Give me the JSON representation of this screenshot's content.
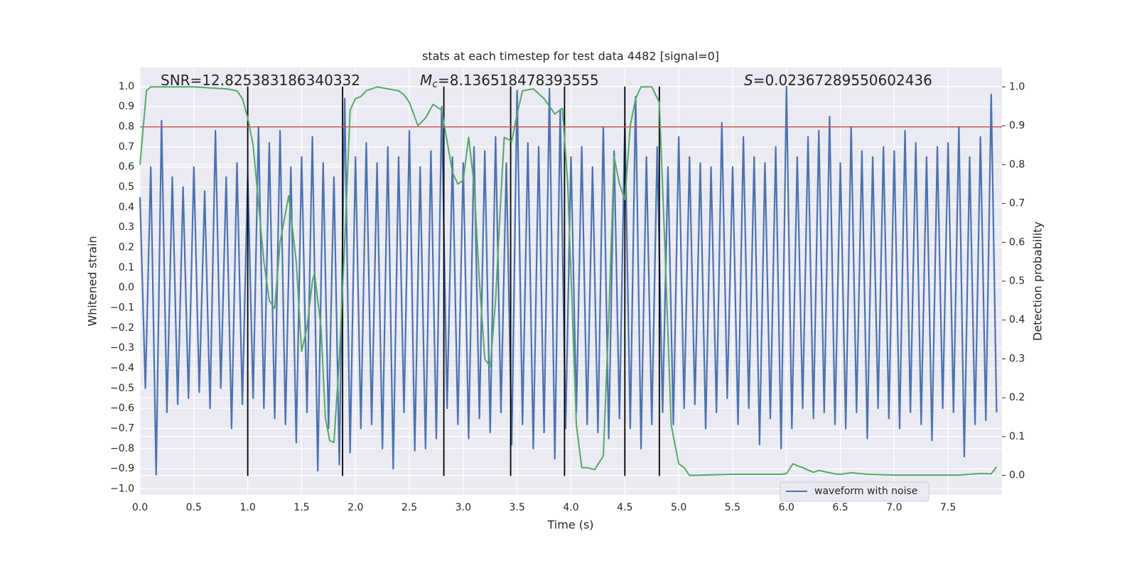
{
  "chart_data": {
    "type": "line",
    "title": "stats at each timestep for test data 4482 [signal=0]",
    "xlabel": "Time (s)",
    "ylabel": "Whitened strain",
    "y2label": "Detection probability",
    "annotations": [
      {
        "text": "SNR=12.825383186340332"
      },
      {
        "symbol": "M",
        "subscript": "c",
        "text": "=8.136518478393555"
      },
      {
        "symbol": "S",
        "text": "=0.02367289550602436"
      }
    ],
    "xlim": [
      0,
      8.0
    ],
    "ylim": [
      -1.03,
      1.095
    ],
    "y2lim": [
      -0.05,
      1.05
    ],
    "xticks": [
      {
        "value": 0,
        "label": "0.0"
      },
      0.5,
      {
        "value": 1,
        "label": "1.0"
      },
      1.5,
      {
        "value": 2,
        "label": "2.0"
      },
      2.5,
      {
        "value": 3,
        "label": "3.0"
      },
      3.5,
      {
        "value": 4,
        "label": "4.0"
      },
      4.5,
      {
        "value": 5,
        "label": "5.0"
      },
      5.5,
      {
        "value": 6,
        "label": "6.0"
      },
      6.5,
      {
        "value": 7,
        "label": "7.0"
      },
      7.5
    ],
    "yticks": [
      {
        "value": -1,
        "label": "−1.0"
      },
      {
        "value": -0.9,
        "label": "−0.9"
      },
      {
        "value": -0.8,
        "label": "−0.8"
      },
      {
        "value": -0.7,
        "label": "−0.7"
      },
      {
        "value": -0.6,
        "label": "−0.6"
      },
      {
        "value": -0.5,
        "label": "−0.5"
      },
      {
        "value": -0.4,
        "label": "−0.4"
      },
      {
        "value": -0.3,
        "label": "−0.3"
      },
      {
        "value": -0.2,
        "label": "−0.2"
      },
      {
        "value": -0.1,
        "label": "−0.1"
      },
      {
        "value": 0,
        "label": "0.0"
      },
      0.1,
      0.2,
      0.3,
      0.4,
      0.5,
      0.6,
      0.7,
      0.8,
      0.9,
      {
        "value": 1,
        "label": "1.0"
      }
    ],
    "y2ticks": [
      {
        "value": 0,
        "label": "0.0"
      },
      0.1,
      0.2,
      0.3,
      0.4,
      0.5,
      0.6,
      0.7,
      0.8,
      0.9,
      {
        "value": 1,
        "label": "1.0"
      }
    ],
    "grid": true,
    "legend": "best",
    "series": [
      {
        "name": "waveform with noise",
        "color": "#4c72b0",
        "x": [
          0,
          0.05,
          0.1,
          0.15,
          0.2,
          0.25,
          0.3,
          0.35,
          0.4,
          0.45,
          0.5,
          0.55,
          0.6,
          0.65,
          0.7,
          0.75,
          0.8,
          0.85,
          0.9,
          0.95,
          1,
          1.05,
          1.1,
          1.15,
          1.2,
          1.25,
          1.3,
          1.35,
          1.4,
          1.45,
          1.5,
          1.55,
          1.6,
          1.65,
          1.7,
          1.75,
          1.8,
          1.85,
          1.9,
          1.95,
          2,
          2.05,
          2.1,
          2.15,
          2.2,
          2.25,
          2.3,
          2.35,
          2.4,
          2.45,
          2.5,
          2.55,
          2.6,
          2.65,
          2.7,
          2.75,
          2.8,
          2.85,
          2.9,
          2.95,
          3,
          3.05,
          3.1,
          3.15,
          3.2,
          3.25,
          3.3,
          3.35,
          3.4,
          3.45,
          3.5,
          3.55,
          3.6,
          3.65,
          3.7,
          3.75,
          3.8,
          3.85,
          3.9,
          3.95,
          4,
          4.05,
          4.1,
          4.15,
          4.2,
          4.25,
          4.3,
          4.35,
          4.4,
          4.45,
          4.5,
          4.55,
          4.6,
          4.65,
          4.7,
          4.75,
          4.8,
          4.85,
          4.9,
          4.95,
          5,
          5.05,
          5.1,
          5.15,
          5.2,
          5.25,
          5.3,
          5.35,
          5.4,
          5.45,
          5.5,
          5.55,
          5.6,
          5.65,
          5.7,
          5.75,
          5.8,
          5.85,
          5.9,
          5.95,
          6,
          6.05,
          6.1,
          6.15,
          6.2,
          6.25,
          6.3,
          6.35,
          6.4,
          6.45,
          6.5,
          6.55,
          6.6,
          6.65,
          6.7,
          6.75,
          6.8,
          6.85,
          6.9,
          6.95,
          7,
          7.05,
          7.1,
          7.15,
          7.2,
          7.25,
          7.3,
          7.35,
          7.4,
          7.45,
          7.5,
          7.55,
          7.6,
          7.65,
          7.7,
          7.75,
          7.8,
          7.85,
          7.9,
          7.95
        ],
        "values": [
          0.45,
          -0.5,
          0.6,
          -0.93,
          0.83,
          -0.62,
          0.55,
          -0.58,
          0.5,
          -0.55,
          0.6,
          -0.52,
          0.48,
          -0.6,
          0.78,
          -0.5,
          0.55,
          -0.7,
          0.62,
          -0.58,
          0.56,
          -0.55,
          0.8,
          -0.6,
          0.72,
          -0.65,
          0.78,
          -0.68,
          0.6,
          -0.77,
          0.65,
          -0.62,
          0.75,
          -0.91,
          0.62,
          -0.7,
          0.55,
          -0.88,
          0.94,
          -0.82,
          0.65,
          -0.7,
          0.72,
          -0.68,
          0.62,
          -0.8,
          0.7,
          -0.9,
          0.65,
          -0.62,
          0.78,
          -0.81,
          0.6,
          -0.8,
          0.68,
          -0.75,
          0.9,
          -0.6,
          0.65,
          -0.68,
          0.62,
          -0.75,
          0.7,
          -0.65,
          0.68,
          -0.72,
          0.75,
          -0.62,
          0.62,
          -0.78,
          0.98,
          -0.68,
          0.72,
          -0.8,
          0.7,
          -0.72,
          0.99,
          -0.85,
          0.88,
          -0.7,
          0.65,
          -0.62,
          0.7,
          -0.68,
          0.6,
          -0.72,
          0.8,
          -0.75,
          0.68,
          -0.65,
          0.82,
          -0.7,
          0.95,
          -0.8,
          0.65,
          -0.68,
          0.7,
          -0.62,
          0.6,
          -0.68,
          0.75,
          -0.6,
          0.65,
          -0.58,
          0.62,
          -0.7,
          0.6,
          -0.62,
          0.82,
          -0.55,
          0.6,
          -0.68,
          0.75,
          -0.6,
          0.65,
          -0.78,
          0.62,
          -0.65,
          0.7,
          -0.8,
          1.0,
          -0.7,
          0.65,
          -0.6,
          0.75,
          -0.65,
          0.78,
          -0.62,
          0.85,
          -0.68,
          0.62,
          -0.7,
          0.8,
          -0.62,
          0.68,
          -0.75,
          0.65,
          -0.6,
          0.7,
          -0.65,
          0.68,
          -0.7,
          0.78,
          -0.62,
          0.72,
          -0.68,
          0.65,
          -0.76,
          0.7,
          -0.6,
          0.72,
          -0.62,
          0.8,
          -0.84,
          0.65,
          -0.68,
          0.75,
          -0.66,
          0.96,
          -0.62
        ]
      }
    ],
    "probability": {
      "color": "#55a868",
      "axis": "y2",
      "x": [
        0,
        0.06,
        0.1,
        0.5,
        0.8,
        0.9,
        0.95,
        1.0,
        1.05,
        1.1,
        1.15,
        1.2,
        1.25,
        1.3,
        1.38,
        1.45,
        1.5,
        1.55,
        1.6,
        1.62,
        1.68,
        1.72,
        1.76,
        1.8,
        1.85,
        1.9,
        1.95,
        2.0,
        2.05,
        2.1,
        2.2,
        2.4,
        2.45,
        2.5,
        2.58,
        2.65,
        2.72,
        2.8,
        2.9,
        2.95,
        3.0,
        3.05,
        3.1,
        3.15,
        3.2,
        3.25,
        3.3,
        3.35,
        3.38,
        3.45,
        3.5,
        3.55,
        3.65,
        3.75,
        3.85,
        3.92,
        3.97,
        4.05,
        4.1,
        4.15,
        4.22,
        4.3,
        4.35,
        4.4,
        4.45,
        4.5,
        4.55,
        4.6,
        4.65,
        4.75,
        4.82,
        4.87,
        4.93,
        5.0,
        5.05,
        5.1,
        5.5,
        5.95,
        6.0,
        6.06,
        6.1,
        6.15,
        6.25,
        6.3,
        6.45,
        6.5,
        6.6,
        6.75,
        7.0,
        7.6,
        7.8,
        7.9,
        7.95
      ],
      "values": [
        0.8,
        0.99,
        1.0,
        1.0,
        0.995,
        0.99,
        0.97,
        0.92,
        0.85,
        0.7,
        0.55,
        0.45,
        0.43,
        0.6,
        0.72,
        0.55,
        0.32,
        0.38,
        0.5,
        0.52,
        0.38,
        0.15,
        0.09,
        0.085,
        0.3,
        0.6,
        0.94,
        0.97,
        0.975,
        0.99,
        1.0,
        0.99,
        0.98,
        0.96,
        0.9,
        0.92,
        0.955,
        0.94,
        0.78,
        0.75,
        0.76,
        0.87,
        0.75,
        0.5,
        0.3,
        0.28,
        0.45,
        0.72,
        0.87,
        0.86,
        0.93,
        0.99,
        0.995,
        0.97,
        0.93,
        0.945,
        0.75,
        0.13,
        0.02,
        0.02,
        0.015,
        0.05,
        0.4,
        0.82,
        0.75,
        0.71,
        0.9,
        0.97,
        1.0,
        1.0,
        0.96,
        0.6,
        0.13,
        0.03,
        0.02,
        0.0,
        0.003,
        0.003,
        0.005,
        0.03,
        0.025,
        0.02,
        0.008,
        0.013,
        0.004,
        0.003,
        0.007,
        0.003,
        0.001,
        0.001,
        0.005,
        0.004,
        0.022
      ]
    },
    "vlines": {
      "x": [
        1.0,
        1.88,
        2.82,
        3.44,
        3.94,
        4.5,
        4.82
      ],
      "ymin": -0.936,
      "ymax": 1.0,
      "color": "#000000"
    },
    "hline": {
      "y": 0.8,
      "color": "#c44e52"
    }
  }
}
